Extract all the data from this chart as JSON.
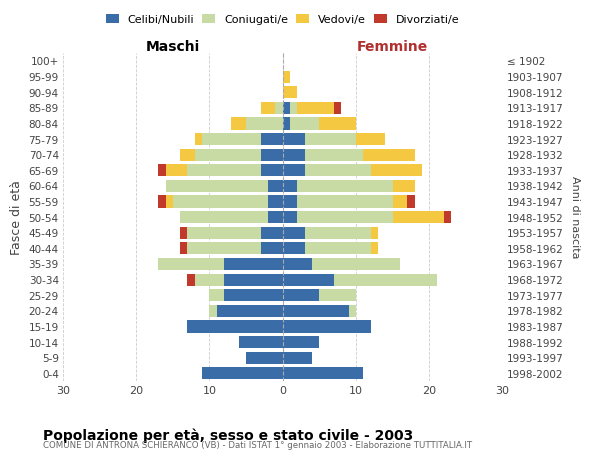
{
  "age_groups": [
    "0-4",
    "5-9",
    "10-14",
    "15-19",
    "20-24",
    "25-29",
    "30-34",
    "35-39",
    "40-44",
    "45-49",
    "50-54",
    "55-59",
    "60-64",
    "65-69",
    "70-74",
    "75-79",
    "80-84",
    "85-89",
    "90-94",
    "95-99",
    "100+"
  ],
  "birth_years": [
    "1998-2002",
    "1993-1997",
    "1988-1992",
    "1983-1987",
    "1978-1982",
    "1973-1977",
    "1968-1972",
    "1963-1967",
    "1958-1962",
    "1953-1957",
    "1948-1952",
    "1943-1947",
    "1938-1942",
    "1933-1937",
    "1928-1932",
    "1923-1927",
    "1918-1922",
    "1913-1917",
    "1908-1912",
    "1903-1907",
    "≤ 1902"
  ],
  "maschi": {
    "celibi": [
      11,
      5,
      6,
      13,
      9,
      8,
      8,
      8,
      3,
      3,
      2,
      2,
      2,
      3,
      3,
      3,
      0,
      0,
      0,
      0,
      0
    ],
    "coniugati": [
      0,
      0,
      0,
      0,
      1,
      2,
      4,
      9,
      10,
      10,
      12,
      13,
      14,
      10,
      9,
      8,
      5,
      1,
      0,
      0,
      0
    ],
    "vedovi": [
      0,
      0,
      0,
      0,
      0,
      0,
      0,
      0,
      0,
      0,
      0,
      1,
      0,
      3,
      2,
      1,
      2,
      2,
      0,
      0,
      0
    ],
    "divorziati": [
      0,
      0,
      0,
      0,
      0,
      0,
      1,
      0,
      1,
      1,
      0,
      1,
      0,
      1,
      0,
      0,
      0,
      0,
      0,
      0,
      0
    ]
  },
  "femmine": {
    "nubili": [
      11,
      4,
      5,
      12,
      9,
      5,
      7,
      4,
      3,
      3,
      2,
      2,
      2,
      3,
      3,
      3,
      1,
      1,
      0,
      0,
      0
    ],
    "coniugate": [
      0,
      0,
      0,
      0,
      1,
      5,
      14,
      12,
      9,
      9,
      13,
      13,
      13,
      9,
      8,
      7,
      4,
      1,
      0,
      0,
      0
    ],
    "vedove": [
      0,
      0,
      0,
      0,
      0,
      0,
      0,
      0,
      1,
      1,
      7,
      2,
      3,
      7,
      7,
      4,
      5,
      5,
      2,
      1,
      0
    ],
    "divorziate": [
      0,
      0,
      0,
      0,
      0,
      0,
      0,
      0,
      0,
      0,
      1,
      1,
      0,
      0,
      0,
      0,
      0,
      1,
      0,
      0,
      0
    ]
  },
  "colors": {
    "celibi": "#3a6ca8",
    "coniugati": "#c8dba4",
    "vedovi": "#f5c842",
    "divorziati": "#c0392b"
  },
  "xlim": 30,
  "title": "Popolazione per età, sesso e stato civile - 2003",
  "subtitle": "COMUNE DI ANTRONA SCHIERANCO (VB) - Dati ISTAT 1° gennaio 2003 - Elaborazione TUTTITALIA.IT",
  "ylabel_left": "Fasce di età",
  "ylabel_right": "Anni di nascita",
  "maschi_label": "Maschi",
  "femmine_label": "Femmine"
}
